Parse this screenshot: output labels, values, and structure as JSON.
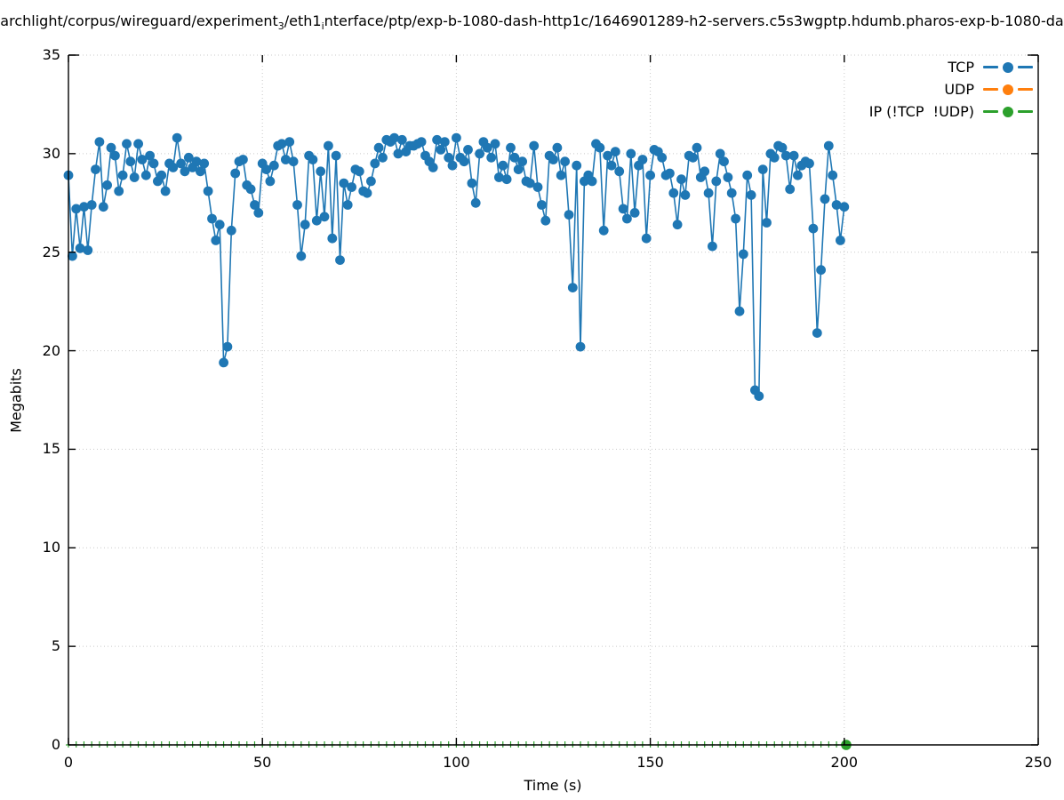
{
  "title": {
    "p1": "archlight/corpus/wireguard/experiment",
    "sub1": "3",
    "p2": "/eth1",
    "sub2": "i",
    "p3": "nterface/ptp/exp-b-1080-dash-http1c/1646901289-h2-servers.c5s3wgptp.hdumb.pharos-exp-b-1080-da"
  },
  "axes": {
    "x": {
      "label": "Time (s)",
      "ticks": [
        0,
        50,
        100,
        150,
        200,
        250
      ],
      "range": [
        0,
        250
      ]
    },
    "y": {
      "label": "Megabits",
      "ticks": [
        0,
        5,
        10,
        15,
        20,
        25,
        30,
        35
      ],
      "range": [
        0,
        35
      ]
    }
  },
  "legend": [
    {
      "label": "TCP",
      "color": "#1f77b4"
    },
    {
      "label": "UDP",
      "color": "#ff7f0e"
    },
    {
      "label": "IP (!TCP  !UDP)",
      "color": "#2ca02c"
    }
  ],
  "colors": {
    "tcp": "#1f77b4",
    "udp": "#ff7f0e",
    "ip_other": "#2ca02c",
    "grid": "#c9c9c9",
    "frame": "#000000"
  },
  "chart_data": {
    "type": "line",
    "x_label": "Time (s)",
    "y_label": "Megabits",
    "x_range": [
      0,
      250
    ],
    "y_range": [
      0,
      35
    ],
    "grid": "dotted",
    "legend_position": "top-right-inside",
    "series": [
      {
        "name": "TCP",
        "color": "#1f77b4",
        "marker": "filled-circle",
        "t_start": 0,
        "t_step": 1,
        "values": [
          28.9,
          24.8,
          27.2,
          25.2,
          27.3,
          25.1,
          27.4,
          29.2,
          30.6,
          27.3,
          28.4,
          30.3,
          29.9,
          28.1,
          28.9,
          30.5,
          29.6,
          28.8,
          30.5,
          29.7,
          28.9,
          29.9,
          29.5,
          28.6,
          28.9,
          28.1,
          29.5,
          29.3,
          30.8,
          29.5,
          29.1,
          29.8,
          29.3,
          29.6,
          29.1,
          29.5,
          28.1,
          26.7,
          25.6,
          26.4,
          19.4,
          20.2,
          26.1,
          29.0,
          29.6,
          29.7,
          28.4,
          28.2,
          27.4,
          27.0,
          29.5,
          29.2,
          28.6,
          29.4,
          30.4,
          30.5,
          29.7,
          30.6,
          29.6,
          27.4,
          24.8,
          26.4,
          29.9,
          29.7,
          26.6,
          29.1,
          26.8,
          30.4,
          25.7,
          29.9,
          24.6,
          28.5,
          27.4,
          28.3,
          29.2,
          29.1,
          28.1,
          28.0,
          28.6,
          29.5,
          30.3,
          29.8,
          30.7,
          30.6,
          30.8,
          30.0,
          30.7,
          30.1,
          30.4,
          30.4,
          30.5,
          30.6,
          29.9,
          29.6,
          29.3,
          30.7,
          30.2,
          30.6,
          29.8,
          29.4,
          30.8,
          29.8,
          29.6,
          30.2,
          28.5,
          27.5,
          30.0,
          30.6,
          30.3,
          29.8,
          30.5,
          28.8,
          29.4,
          28.7,
          30.3,
          29.8,
          29.2,
          29.6,
          28.6,
          28.5,
          30.4,
          28.3,
          27.4,
          26.6,
          29.9,
          29.7,
          30.3,
          28.9,
          29.6,
          26.9,
          23.2,
          29.4,
          20.2,
          28.6,
          28.9,
          28.6,
          30.5,
          30.3,
          26.1,
          29.9,
          29.4,
          30.1,
          29.1,
          27.2,
          26.7,
          30.0,
          27.0,
          29.4,
          29.7,
          25.7,
          28.9,
          30.2,
          30.1,
          29.8,
          28.9,
          29.0,
          28.0,
          26.4,
          28.7,
          27.9,
          29.9,
          29.8,
          30.3,
          28.8,
          29.1,
          28.0,
          25.3,
          28.6,
          30.0,
          29.6,
          28.8,
          28.0,
          26.7,
          22.0,
          24.9,
          28.9,
          27.9,
          18.0,
          17.7,
          29.2,
          26.5,
          30.0,
          29.8,
          30.4,
          30.3,
          29.9,
          28.2,
          29.9,
          28.9,
          29.4,
          29.6,
          29.5,
          26.2,
          20.9,
          24.1,
          27.7,
          30.4,
          28.9,
          27.4,
          25.6,
          27.3
        ]
      },
      {
        "name": "UDP",
        "color": "#ff7f0e",
        "marker": "filled-circle",
        "t_start": 0,
        "t_step": 1,
        "values": []
      },
      {
        "name": "IP (!TCP  !UDP)",
        "color": "#2ca02c",
        "marker": "small-plus",
        "t_start": 0,
        "t_step": 2,
        "count": 101,
        "constant_value": 0,
        "last_point": {
          "t": 200.5,
          "value": 0,
          "marker": "filled-circle"
        }
      }
    ]
  }
}
